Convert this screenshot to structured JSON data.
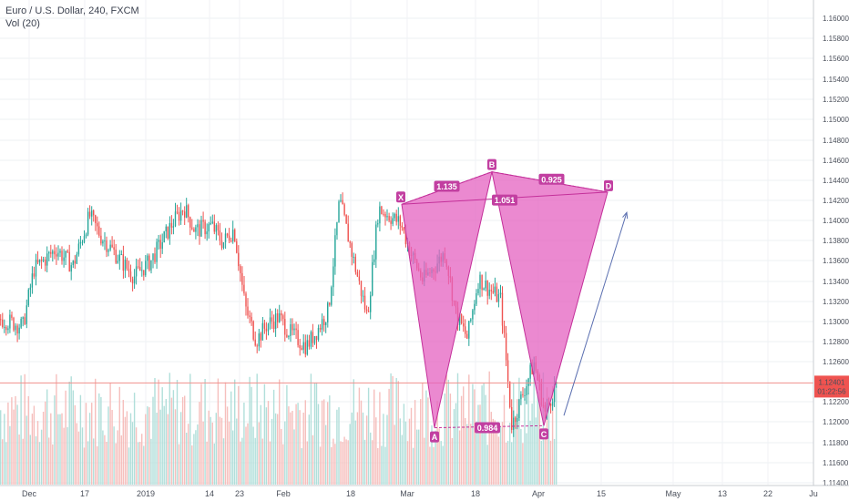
{
  "header": {
    "symbol_title": "Euro / U.S. Dollar, 240, FXCM",
    "volume_label": "Vol (20)"
  },
  "price_axis": {
    "ticks": [
      "1.16000",
      "1.15800",
      "1.15600",
      "1.15400",
      "1.15200",
      "1.15000",
      "1.14800",
      "1.14600",
      "1.14400",
      "1.14200",
      "1.14000",
      "1.13800",
      "1.13600",
      "1.13400",
      "1.13200",
      "1.13000",
      "1.12800",
      "1.12600",
      "1.12200",
      "1.12000",
      "1.11800",
      "1.11600",
      "1.11400"
    ],
    "last_price": "1.12401",
    "countdown": "01:22:56",
    "last_price_color": "#ef5350"
  },
  "time_axis": {
    "labels": [
      "Dec",
      "17",
      "2019",
      "14",
      "23",
      "Feb",
      "18",
      "Mar",
      "18",
      "Apr",
      "15",
      "May",
      "13",
      "22",
      "Ju"
    ]
  },
  "colors": {
    "up": "#26a69a",
    "down": "#ef5350",
    "pattern_fill": "#e462c0",
    "pattern_stroke": "#c4309a",
    "arrow": "#5b6fb0"
  },
  "chart_data": {
    "type": "candlestick",
    "instrument": "Euro / U.S. Dollar",
    "timeframe": "240",
    "source": "FXCM",
    "y_range": [
      1.114,
      1.161
    ],
    "x_range": [
      "Dec",
      "Ju"
    ],
    "volume_indicator": "Vol (20)",
    "guide_path": {
      "x": [
        0,
        4,
        6,
        10,
        13,
        16,
        18,
        24,
        27,
        31,
        33,
        35,
        38,
        40,
        42,
        44,
        46,
        48,
        50,
        52,
        55,
        57,
        59,
        61,
        64,
        66,
        68,
        72,
        74,
        76,
        78,
        80,
        82,
        84,
        86,
        88,
        90,
        92,
        94,
        96,
        98,
        100
      ],
      "y": [
        1.1303,
        1.1296,
        1.1352,
        1.1372,
        1.1355,
        1.1405,
        1.1385,
        1.1345,
        1.136,
        1.1398,
        1.1413,
        1.139,
        1.1395,
        1.1378,
        1.1392,
        1.1315,
        1.1282,
        1.1298,
        1.1305,
        1.129,
        1.1276,
        1.1292,
        1.1312,
        1.142,
        1.135,
        1.1305,
        1.1412,
        1.1397,
        1.1366,
        1.1341,
        1.1354,
        1.1369,
        1.1307,
        1.1284,
        1.1343,
        1.1332,
        1.1322,
        1.1198,
        1.123,
        1.126,
        1.121,
        1.124
      ]
    },
    "pattern": {
      "points": [
        {
          "label": "X",
          "price": 1.1416
        },
        {
          "label": "A",
          "price": 1.1196
        },
        {
          "label": "B",
          "price": 1.1448
        },
        {
          "label": "C",
          "price": 1.1198
        },
        {
          "label": "D",
          "price": 1.1428
        }
      ],
      "ratios": [
        {
          "label": "1.135",
          "between": "X-B"
        },
        {
          "label": "1.051",
          "between": "X-D"
        },
        {
          "label": "0.925",
          "between": "B-D"
        },
        {
          "label": "0.984",
          "between": "A-C"
        }
      ]
    },
    "projection_arrow": {
      "from": 1.1208,
      "to": 1.1408
    },
    "last_price": 1.12401,
    "grid": true
  }
}
